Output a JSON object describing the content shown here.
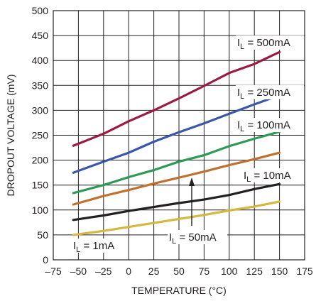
{
  "chart_data": {
    "type": "line",
    "xlabel": "TEMPERATURE (°C)",
    "ylabel": "DROPOUT VOLTAGE (mV)",
    "xlim": [
      -75,
      175
    ],
    "ylim": [
      0,
      500
    ],
    "xticks": [
      -75,
      -50,
      -25,
      0,
      25,
      50,
      75,
      100,
      125,
      150,
      175
    ],
    "yticks": [
      0,
      50,
      100,
      150,
      200,
      250,
      300,
      350,
      400,
      450,
      500
    ],
    "grid": true,
    "series": [
      {
        "label_main": "I",
        "label_sub": "L",
        "label_rest": " = 500mA",
        "color": "#9b1b43",
        "x": [
          -55,
          -25,
          0,
          25,
          50,
          75,
          100,
          125,
          150
        ],
        "y": [
          229,
          253,
          278,
          300,
          324,
          349,
          375,
          393,
          417
        ]
      },
      {
        "label_main": "I",
        "label_sub": "L",
        "label_rest": " = 250mA",
        "color": "#3a58a8",
        "x": [
          -55,
          -25,
          0,
          25,
          50,
          75,
          100,
          125,
          150
        ],
        "y": [
          175,
          197,
          215,
          237,
          256,
          274,
          293,
          312,
          330
        ]
      },
      {
        "label_main": "I",
        "label_sub": "L",
        "label_rest": " = 100mA",
        "color": "#2d9a55",
        "x": [
          -55,
          -25,
          0,
          25,
          50,
          75,
          100,
          125,
          150
        ],
        "y": [
          134,
          150,
          166,
          180,
          197,
          210,
          228,
          243,
          257
        ]
      },
      {
        "label_main": "I",
        "label_sub": "L",
        "label_rest": " = 50mA",
        "color": "#c0712f",
        "x": [
          -55,
          -25,
          0,
          25,
          50,
          75,
          100,
          125,
          150
        ],
        "y": [
          111,
          128,
          140,
          153,
          165,
          177,
          190,
          202,
          215
        ]
      },
      {
        "label_main": "I",
        "label_sub": "L",
        "label_rest": " = 10mA",
        "color": "#231f20",
        "x": [
          -55,
          -25,
          0,
          25,
          50,
          75,
          100,
          125,
          150
        ],
        "y": [
          80,
          89,
          98,
          106,
          114,
          121,
          130,
          142,
          152
        ]
      },
      {
        "label_main": "I",
        "label_sub": "L",
        "label_rest": " = 1mA",
        "color": "#d4b840",
        "x": [
          -55,
          -25,
          0,
          25,
          50,
          75,
          100,
          125,
          150
        ],
        "y": [
          50,
          58,
          66,
          74,
          82,
          90,
          99,
          107,
          117
        ]
      }
    ]
  }
}
